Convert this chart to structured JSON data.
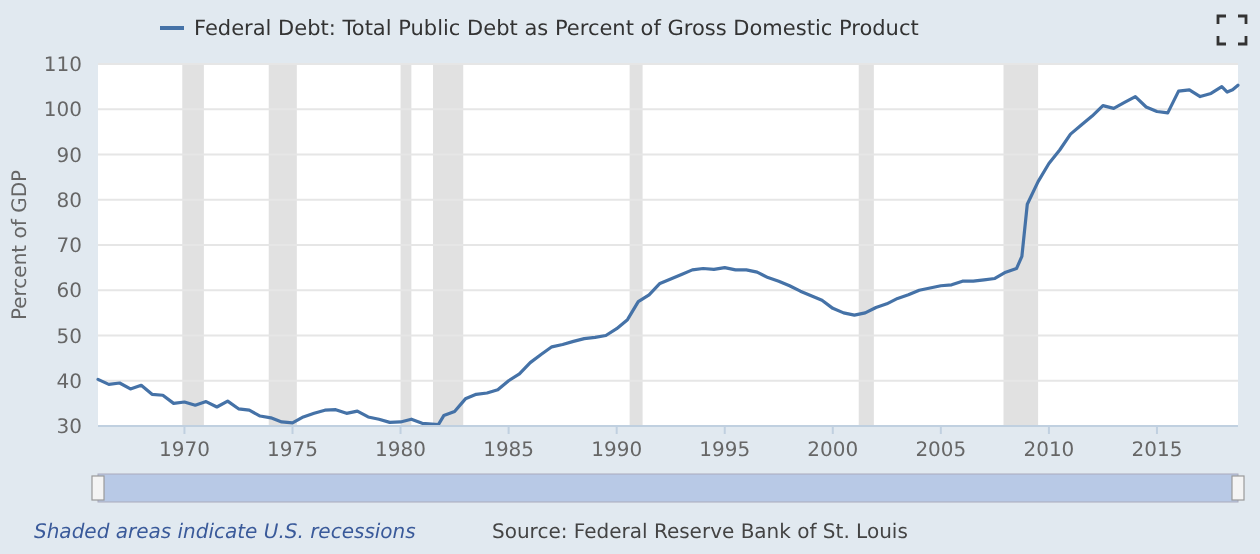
{
  "chart_data": {
    "type": "line",
    "ylabel": "Percent of GDP",
    "series": [
      {
        "name": "Federal Debt: Total Public Debt as Percent of Gross Domestic Product",
        "color": "#4572a7",
        "x": [
          1966,
          1966.5,
          1967,
          1967.5,
          1968,
          1968.5,
          1969,
          1969.5,
          1970,
          1970.5,
          1971,
          1971.5,
          1972,
          1972.5,
          1973,
          1973.5,
          1974,
          1974.5,
          1975,
          1975.5,
          1976,
          1976.5,
          1977,
          1977.5,
          1978,
          1978.5,
          1979,
          1979.5,
          1980,
          1980.5,
          1981,
          1981.75,
          1982,
          1982.5,
          1983,
          1983.5,
          1984,
          1984.5,
          1985,
          1985.5,
          1986,
          1986.5,
          1987,
          1987.5,
          1988,
          1988.5,
          1989,
          1989.5,
          1990,
          1990.5,
          1991,
          1991.5,
          1992,
          1992.5,
          1993,
          1993.5,
          1994,
          1994.5,
          1995,
          1995.5,
          1996,
          1996.5,
          1997,
          1997.5,
          1998,
          1998.5,
          1999,
          1999.5,
          2000,
          2000.5,
          2001,
          2001.5,
          2002,
          2002.5,
          2003,
          2003.5,
          2004,
          2004.5,
          2005,
          2005.5,
          2006,
          2006.5,
          2007,
          2007.5,
          2008,
          2008.5,
          2008.75,
          2009,
          2009.5,
          2010,
          2010.5,
          2011,
          2011.5,
          2012,
          2012.5,
          2013,
          2013.5,
          2014,
          2014.5,
          2015,
          2015.5,
          2016,
          2016.5,
          2017,
          2017.5,
          2018,
          2018.25,
          2018.5,
          2018.75
        ],
        "values": [
          40.3,
          39.2,
          39.5,
          38.2,
          39.0,
          37.0,
          36.8,
          35.0,
          35.3,
          34.6,
          35.4,
          34.2,
          35.5,
          33.8,
          33.5,
          32.2,
          31.8,
          30.9,
          30.7,
          32.0,
          32.8,
          33.5,
          33.6,
          32.8,
          33.3,
          32.0,
          31.5,
          30.8,
          30.9,
          31.5,
          30.6,
          30.3,
          32.3,
          33.2,
          36.0,
          37.0,
          37.3,
          38.0,
          40.0,
          41.5,
          44.0,
          45.8,
          47.5,
          48.0,
          48.7,
          49.3,
          49.6,
          50.0,
          51.5,
          53.5,
          57.5,
          59.0,
          61.5,
          62.5,
          63.5,
          64.5,
          64.8,
          64.6,
          65.0,
          64.5,
          64.5,
          64.0,
          62.8,
          62.0,
          61.0,
          59.8,
          58.8,
          57.8,
          56.0,
          55.0,
          54.5,
          55.0,
          56.2,
          57.0,
          58.2,
          59.0,
          60.0,
          60.5,
          61.0,
          61.2,
          62.0,
          62.0,
          62.3,
          62.6,
          64.0,
          64.8,
          67.5,
          79.0,
          84.0,
          88.0,
          91.0,
          94.5,
          96.5,
          98.5,
          100.8,
          100.2,
          101.5,
          102.8,
          100.5,
          99.5,
          99.2,
          104.0,
          104.3,
          102.8,
          103.5,
          105.0,
          103.8,
          104.3,
          105.3
        ]
      }
    ],
    "xlim": [
      1966,
      2018.75
    ],
    "ylim": [
      30,
      110
    ],
    "xticks": [
      1970,
      1975,
      1980,
      1985,
      1990,
      1995,
      2000,
      2005,
      2010,
      2015
    ],
    "yticks": [
      30,
      40,
      50,
      60,
      70,
      80,
      90,
      100,
      110
    ],
    "bands": [
      {
        "axis": "x",
        "from": 1969.9,
        "to": 1970.9,
        "color": "#e1e1e1"
      },
      {
        "axis": "x",
        "from": 1973.9,
        "to": 1975.2,
        "color": "#e1e1e1"
      },
      {
        "axis": "x",
        "from": 1980.0,
        "to": 1980.5,
        "color": "#e1e1e1"
      },
      {
        "axis": "x",
        "from": 1981.5,
        "to": 1982.9,
        "color": "#e1e1e1"
      },
      {
        "axis": "x",
        "from": 1990.6,
        "to": 1991.2,
        "color": "#e1e1e1"
      },
      {
        "axis": "x",
        "from": 2001.2,
        "to": 2001.9,
        "color": "#e1e1e1"
      },
      {
        "axis": "x",
        "from": 2007.9,
        "to": 2009.5,
        "color": "#e1e1e1"
      }
    ],
    "grid": "y",
    "legend": "top left",
    "marker": "none",
    "line_style": "solid",
    "annotations": [
      "Shaded areas indicate U.S. recessions",
      "Source: Federal Reserve Bank of St. Louis"
    ]
  }
}
